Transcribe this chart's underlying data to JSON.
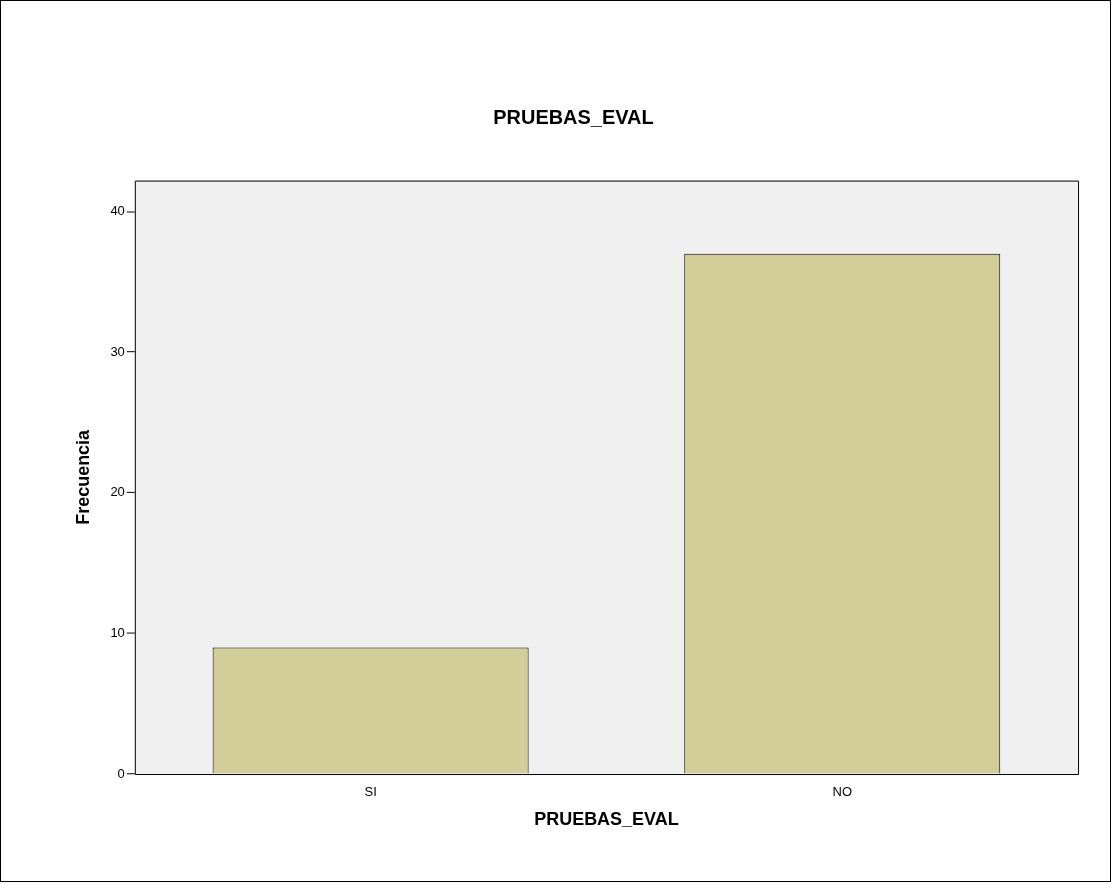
{
  "chart_data": {
    "type": "bar",
    "title": "PRUEBAS_EVAL",
    "xlabel": "PRUEBAS_EVAL",
    "ylabel": "Frecuencia",
    "categories": [
      "SI",
      "NO"
    ],
    "values": [
      9,
      37
    ],
    "color": "#d3ce97",
    "ylim": [
      0,
      42.2
    ],
    "yticks": [
      0,
      10,
      20,
      30,
      40
    ]
  }
}
